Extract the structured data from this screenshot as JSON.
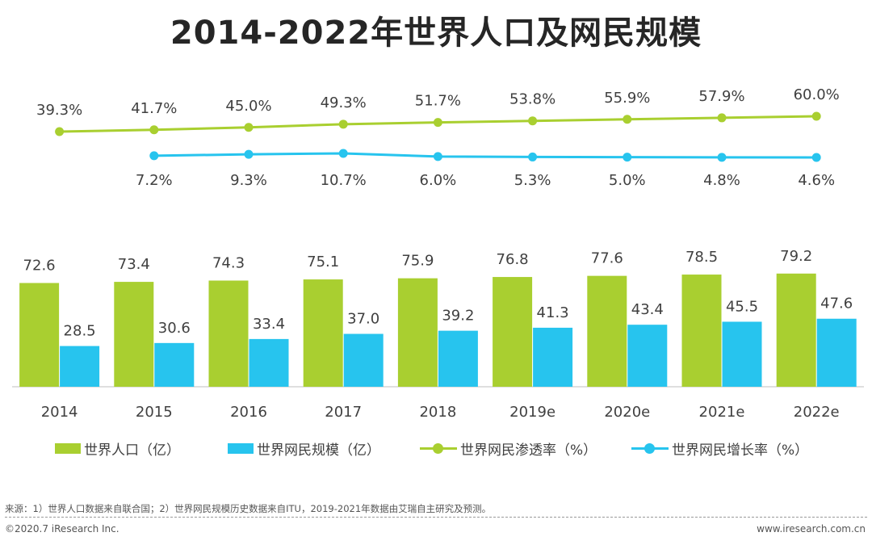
{
  "title": "2014-2022年世界人口及网民规模",
  "colors": {
    "population": "#a9cf30",
    "internet_users": "#27c4ee",
    "penetration": "#a9cf30",
    "growth": "#27c4ee"
  },
  "legend": {
    "population": "世界人口（亿）",
    "internet_users": "世界网民规模（亿）",
    "penetration": "世界网民渗透率（%）",
    "growth": "世界网民增长率（%）"
  },
  "chart_data": {
    "type": "bar",
    "categories": [
      "2014",
      "2015",
      "2016",
      "2017",
      "2018",
      "2019e",
      "2020e",
      "2021e",
      "2022e"
    ],
    "series": [
      {
        "name": "世界人口（亿）",
        "type": "bar",
        "values": [
          72.6,
          73.4,
          74.3,
          75.1,
          75.9,
          76.8,
          77.6,
          78.5,
          79.2
        ],
        "labels": [
          "72.6",
          "73.4",
          "74.3",
          "75.1",
          "75.9",
          "76.8",
          "77.6",
          "78.5",
          "79.2"
        ]
      },
      {
        "name": "世界网民规模（亿）",
        "type": "bar",
        "values": [
          28.5,
          30.6,
          33.4,
          37.0,
          39.2,
          41.3,
          43.4,
          45.5,
          47.6
        ],
        "labels": [
          "28.5",
          "30.6",
          "33.4",
          "37.0",
          "39.2",
          "41.3",
          "43.4",
          "45.5",
          "47.6"
        ]
      },
      {
        "name": "世界网民渗透率（%）",
        "type": "line",
        "values": [
          39.3,
          41.7,
          45.0,
          49.3,
          51.7,
          53.8,
          55.9,
          57.9,
          60.0
        ],
        "labels": [
          "39.3%",
          "41.7%",
          "45.0%",
          "49.3%",
          "51.7%",
          "53.8%",
          "55.9%",
          "57.9%",
          "60.0%"
        ]
      },
      {
        "name": "世界网民增长率（%）",
        "type": "line",
        "values": [
          null,
          7.2,
          9.3,
          10.7,
          6.0,
          5.3,
          5.0,
          4.8,
          4.6
        ],
        "labels": [
          null,
          "7.2%",
          "9.3%",
          "10.7%",
          "6.0%",
          "5.3%",
          "5.0%",
          "4.8%",
          "4.6%"
        ]
      }
    ]
  },
  "footer": {
    "source": "来源：1）世界人口数据来自联合国；2）世界网民规模历史数据来自ITU，2019-2021年数据由艾瑞自主研究及预测。",
    "copyright": "©2020.7 iResearch Inc.",
    "website": "www.iresearch.com.cn"
  }
}
